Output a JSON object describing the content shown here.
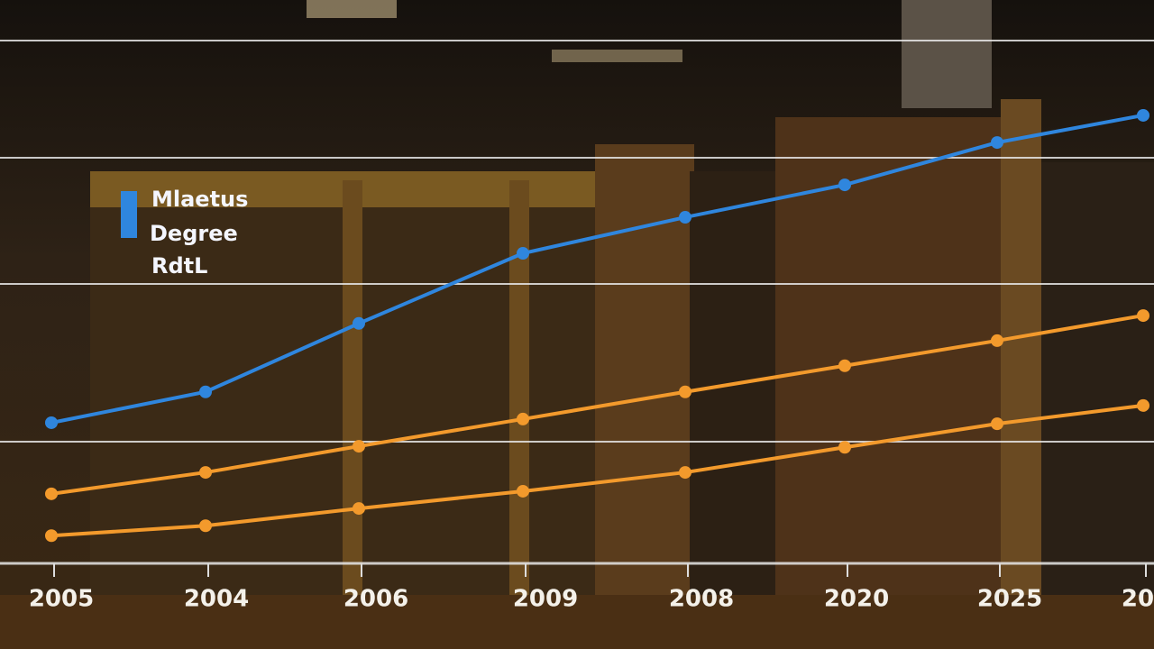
{
  "chart_data": {
    "type": "line",
    "legend_lines": [
      "Mlaetus",
      "Degree",
      "RdtL"
    ],
    "categories": [
      "2005",
      "2004",
      "2006",
      "2009",
      "2008",
      "2020",
      "2025",
      "20"
    ],
    "ylim": [
      0,
      100
    ],
    "series": [
      {
        "color": "#2f86de",
        "values": [
          26.9,
          32.8,
          45.9,
          59.3,
          66.2,
          72.4,
          80.5,
          85.7
        ]
      },
      {
        "color": "#f39a2c",
        "values": [
          13.3,
          17.4,
          22.4,
          27.6,
          32.8,
          37.8,
          42.6,
          47.4
        ]
      },
      {
        "color": "#f39a2c",
        "values": [
          5.3,
          7.2,
          10.5,
          13.8,
          17.4,
          22.2,
          26.7,
          30.2
        ]
      }
    ]
  }
}
